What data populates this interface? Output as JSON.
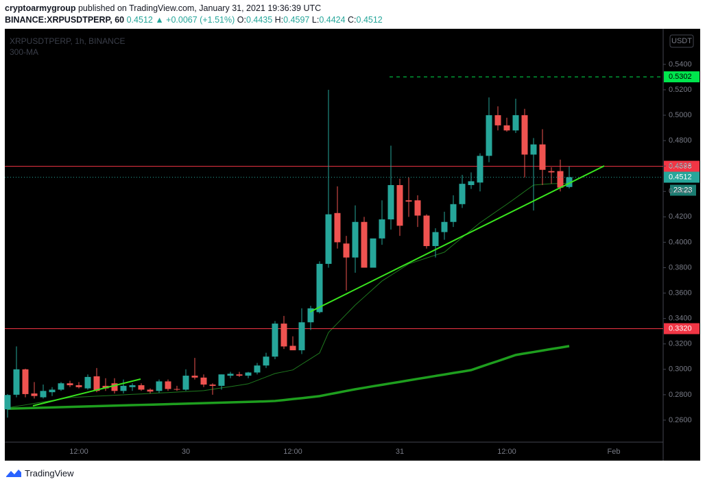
{
  "header": {
    "publisher": "cryptoarmygroup",
    "published_text": "published on TradingView.com, January 31, 2021 19:36:39 UTC",
    "symbol": "BINANCE:XRPUSDTPERP, 60",
    "change": "▲ +0.0067 (+1.51%)",
    "ohlc_labels": [
      "O:",
      "H:",
      "L:",
      "C:"
    ]
  },
  "footer": {
    "brand": "TradingView"
  },
  "chart_data": {
    "type": "candlestick",
    "chart_label": "XRPUSDTPERP, 1h, BINANCE",
    "indicator_label": "300-MA",
    "currency": "USDT",
    "countdown": "23:23",
    "up_color": "#26a69a",
    "down_color": "#ef5350",
    "categories": [
      null,
      null,
      null,
      null,
      null,
      null,
      null,
      null,
      "12:00",
      null,
      null,
      null,
      null,
      null,
      null,
      null,
      null,
      null,
      null,
      null,
      "30",
      null,
      null,
      null,
      null,
      null,
      null,
      null,
      null,
      null,
      null,
      null,
      "12:00",
      null,
      null,
      null,
      null,
      null,
      null,
      null,
      null,
      null,
      null,
      null,
      "31",
      null,
      null,
      null,
      null,
      null,
      null,
      null,
      null,
      null,
      null,
      null,
      "12:00",
      null,
      null,
      null,
      null,
      null,
      null,
      null,
      null,
      null,
      null,
      null,
      "Feb"
    ],
    "open": [
      0.2685,
      0.28,
      0.3,
      0.281,
      0.278,
      0.282,
      0.284,
      0.289,
      0.2875,
      0.285,
      0.2945,
      0.287,
      0.289,
      0.283,
      0.286,
      0.2875,
      0.284,
      0.283,
      0.2905,
      0.2845,
      0.284,
      0.295,
      0.2935,
      0.288,
      0.287,
      0.295,
      0.296,
      0.295,
      0.2975,
      0.303,
      0.31,
      0.336,
      0.3185,
      0.315,
      0.337,
      0.345,
      0.383,
      0.423,
      0.399,
      0.388,
      0.416,
      0.38,
      0.403,
      0.418,
      0.445,
      0.433,
      0.433,
      0.421,
      0.397,
      0.408,
      0.416,
      0.43,
      0.445,
      0.447,
      0.468,
      0.5,
      0.492,
      0.488,
      0.5,
      0.469,
      0.477,
      0.456,
      0.456,
      0.4435,
      null,
      null,
      null,
      null,
      null
    ],
    "high": [
      0.2805,
      0.318,
      0.3005,
      0.29,
      0.288,
      0.286,
      0.29,
      0.291,
      0.29,
      0.296,
      0.301,
      0.293,
      0.293,
      0.292,
      0.289,
      0.289,
      0.285,
      0.292,
      0.292,
      0.287,
      0.3,
      0.309,
      0.296,
      0.289,
      0.296,
      0.298,
      0.298,
      0.298,
      0.305,
      0.313,
      0.338,
      0.342,
      0.326,
      0.348,
      0.35,
      0.385,
      0.52,
      0.444,
      0.405,
      0.429,
      0.42,
      0.402,
      0.433,
      0.476,
      0.45,
      0.451,
      0.437,
      0.422,
      0.411,
      0.424,
      0.437,
      0.453,
      0.455,
      0.47,
      0.514,
      0.507,
      0.498,
      0.513,
      0.505,
      0.482,
      0.489,
      0.459,
      0.465,
      0.4597,
      null,
      null,
      null,
      null,
      null
    ],
    "low": [
      0.262,
      0.278,
      0.278,
      0.277,
      0.277,
      0.279,
      0.283,
      0.286,
      0.285,
      0.284,
      0.282,
      0.283,
      0.281,
      0.281,
      0.283,
      0.283,
      0.281,
      0.2815,
      0.283,
      0.283,
      0.283,
      0.292,
      0.286,
      0.28,
      0.284,
      0.293,
      0.294,
      0.293,
      0.296,
      0.301,
      0.308,
      0.316,
      0.315,
      0.312,
      0.331,
      0.344,
      0.38,
      0.395,
      0.362,
      0.376,
      0.38,
      0.38,
      0.398,
      0.41,
      0.405,
      0.42,
      0.412,
      0.395,
      0.388,
      0.402,
      0.412,
      0.427,
      0.442,
      0.44,
      0.463,
      0.488,
      0.487,
      0.486,
      0.451,
      0.425,
      0.445,
      0.446,
      0.44,
      0.4424,
      null,
      null,
      null,
      null,
      null
    ],
    "close": [
      0.2798,
      0.3,
      0.2805,
      0.279,
      0.283,
      0.284,
      0.289,
      0.2875,
      0.286,
      0.294,
      0.283,
      0.285,
      0.283,
      0.287,
      0.2875,
      0.284,
      0.2825,
      0.2905,
      0.2845,
      0.284,
      0.295,
      0.2935,
      0.288,
      0.287,
      0.296,
      0.2965,
      0.295,
      0.2975,
      0.303,
      0.31,
      0.336,
      0.318,
      0.315,
      0.337,
      0.348,
      0.383,
      0.422,
      0.4,
      0.388,
      0.416,
      0.38,
      0.403,
      0.418,
      0.445,
      0.413,
      0.432,
      0.421,
      0.397,
      0.408,
      0.416,
      0.43,
      0.446,
      0.448,
      0.468,
      0.5,
      0.492,
      0.488,
      0.5,
      0.469,
      0.477,
      0.457,
      0.455,
      0.443,
      0.4512,
      null,
      null,
      null,
      null,
      null
    ],
    "lines": [
      {
        "name": "300-MA",
        "color": "#1e9e1e",
        "width": 3.5,
        "values": [
          0.269,
          0.2692,
          0.2694,
          0.2696,
          0.2698,
          0.27,
          0.2702,
          0.2704,
          0.2706,
          0.2708,
          0.271,
          0.2712,
          0.2714,
          0.2716,
          0.2718,
          0.272,
          0.2722,
          0.2724,
          0.2726,
          0.2728,
          0.273,
          0.2732,
          0.2734,
          0.2736,
          0.2738,
          0.274,
          0.2742,
          0.2744,
          0.2746,
          0.2748,
          0.2751,
          0.2758,
          0.2766,
          0.2773,
          0.2781,
          0.2789,
          0.2803,
          0.2816,
          0.283,
          0.2843,
          0.2855,
          0.2867,
          0.2878,
          0.289,
          0.2901,
          0.2913,
          0.2925,
          0.2936,
          0.2948,
          0.2959,
          0.2971,
          0.2982,
          0.2994,
          0.3018,
          0.3042,
          0.3065,
          0.3089,
          0.3113,
          0.3125,
          0.3136,
          0.3148,
          0.316,
          0.3171,
          0.3183,
          null,
          null,
          null,
          null,
          null
        ]
      },
      {
        "color": "#1f7a1f",
        "width": 1,
        "values": [
          0.2697,
          0.2709,
          0.272,
          0.2732,
          0.2743,
          0.2755,
          0.2766,
          0.2778,
          0.2782,
          0.2785,
          0.2789,
          0.2792,
          0.2796,
          0.2799,
          0.2803,
          0.2806,
          0.281,
          0.2814,
          0.2817,
          0.2821,
          0.2825,
          0.2828,
          0.2832,
          0.2843,
          0.2854,
          0.2864,
          0.2875,
          0.2886,
          0.2913,
          0.294,
          0.2967,
          0.2981,
          0.2995,
          0.304,
          0.3084,
          0.3129,
          0.329,
          0.3362,
          0.3434,
          0.3506,
          0.3569,
          0.3632,
          0.3695,
          0.374,
          0.3785,
          0.383,
          0.3853,
          0.3876,
          0.3899,
          0.3922,
          0.398,
          0.4038,
          0.4096,
          0.4154,
          0.4202,
          0.4251,
          0.4299,
          0.4349,
          0.44,
          0.445,
          0.4456,
          0.4461,
          0.4463,
          0.4465,
          null,
          null,
          null,
          null,
          null
        ]
      }
    ],
    "price_lines": [
      {
        "value": 0.5302,
        "label": "0.5302",
        "color": "#00e64d",
        "style": "dashed"
      },
      {
        "value": 0.4598,
        "label": "0.4598",
        "color": "#f23645",
        "style": "solid"
      },
      {
        "value": 0.332,
        "label": "0.3320",
        "color": "#f23645",
        "style": "solid"
      }
    ],
    "ylim": [
      0.2427,
      0.568
    ],
    "yticks": [
      {
        "value": 0.26,
        "label": "0.2600"
      },
      {
        "value": 0.28,
        "label": "0.2800"
      },
      {
        "value": 0.3,
        "label": "0.3000"
      },
      {
        "value": 0.32,
        "label": "0.3200"
      },
      {
        "value": 0.34,
        "label": "0.3400"
      },
      {
        "value": 0.36,
        "label": "0.3600"
      },
      {
        "value": 0.38,
        "label": "0.3800"
      },
      {
        "value": 0.4,
        "label": "0.4000"
      },
      {
        "value": 0.42,
        "label": "0.4200"
      },
      {
        "value": 0.44,
        "label": "0.4400"
      },
      {
        "value": 0.46,
        "label": "0.4600"
      },
      {
        "value": 0.48,
        "label": "0.4800"
      },
      {
        "value": 0.5,
        "label": "0.5000"
      },
      {
        "value": 0.52,
        "label": "0.5200"
      },
      {
        "value": 0.54,
        "label": "0.5400"
      }
    ],
    "grid": false
  }
}
